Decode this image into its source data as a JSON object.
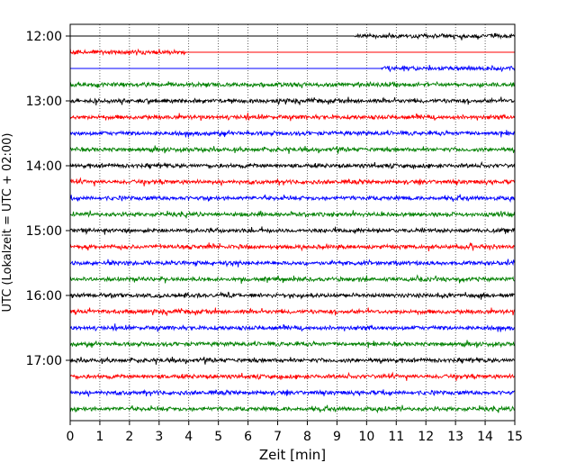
{
  "chart_data": {
    "type": "line",
    "title": "",
    "xlabel": "Zeit  [min]",
    "ylabel": "UTC (Lokalzeit = UTC + 02:00)",
    "xlim": [
      0,
      15
    ],
    "x_ticks": [
      "0",
      "1",
      "2",
      "3",
      "4",
      "5",
      "6",
      "7",
      "8",
      "9",
      "10",
      "11",
      "12",
      "13",
      "14",
      "15"
    ],
    "y_ticks": [
      "12:00",
      "13:00",
      "14:00",
      "15:00",
      "16:00",
      "17:00"
    ],
    "grid": "vertical dotted",
    "trace_interval_minutes": 15,
    "traces": [
      {
        "time": "12:00",
        "color": "#000000",
        "data_from_min": 9.6,
        "data_to_min": 15
      },
      {
        "time": "12:15",
        "color": "#ff0000",
        "data_from_min": 0,
        "data_to_min": 3.9
      },
      {
        "time": "12:30",
        "color": "#0000ff",
        "data_from_min": 10.5,
        "data_to_min": 15
      },
      {
        "time": "12:45",
        "color": "#008000",
        "data_from_min": 0,
        "data_to_min": 15
      },
      {
        "time": "13:00",
        "color": "#000000",
        "data_from_min": 0,
        "data_to_min": 15
      },
      {
        "time": "13:15",
        "color": "#ff0000",
        "data_from_min": 0,
        "data_to_min": 15
      },
      {
        "time": "13:30",
        "color": "#0000ff",
        "data_from_min": 0,
        "data_to_min": 15
      },
      {
        "time": "13:45",
        "color": "#008000",
        "data_from_min": 0,
        "data_to_min": 15
      },
      {
        "time": "14:00",
        "color": "#000000",
        "data_from_min": 0,
        "data_to_min": 15
      },
      {
        "time": "14:15",
        "color": "#ff0000",
        "data_from_min": 0,
        "data_to_min": 15
      },
      {
        "time": "14:30",
        "color": "#0000ff",
        "data_from_min": 0,
        "data_to_min": 15
      },
      {
        "time": "14:45",
        "color": "#008000",
        "data_from_min": 0,
        "data_to_min": 15
      },
      {
        "time": "15:00",
        "color": "#000000",
        "data_from_min": 0,
        "data_to_min": 15
      },
      {
        "time": "15:15",
        "color": "#ff0000",
        "data_from_min": 0,
        "data_to_min": 15
      },
      {
        "time": "15:30",
        "color": "#0000ff",
        "data_from_min": 0,
        "data_to_min": 15
      },
      {
        "time": "15:45",
        "color": "#008000",
        "data_from_min": 0,
        "data_to_min": 15
      },
      {
        "time": "16:00",
        "color": "#000000",
        "data_from_min": 0,
        "data_to_min": 15
      },
      {
        "time": "16:15",
        "color": "#ff0000",
        "data_from_min": 0,
        "data_to_min": 15
      },
      {
        "time": "16:30",
        "color": "#0000ff",
        "data_from_min": 0,
        "data_to_min": 15
      },
      {
        "time": "16:45",
        "color": "#008000",
        "data_from_min": 0,
        "data_to_min": 15
      },
      {
        "time": "17:00",
        "color": "#000000",
        "data_from_min": 0,
        "data_to_min": 15
      },
      {
        "time": "17:15",
        "color": "#ff0000",
        "data_from_min": 0,
        "data_to_min": 15
      },
      {
        "time": "17:30",
        "color": "#0000ff",
        "data_from_min": 0,
        "data_to_min": 15
      },
      {
        "time": "17:45",
        "color": "#008000",
        "data_from_min": 0,
        "data_to_min": 15
      }
    ]
  }
}
